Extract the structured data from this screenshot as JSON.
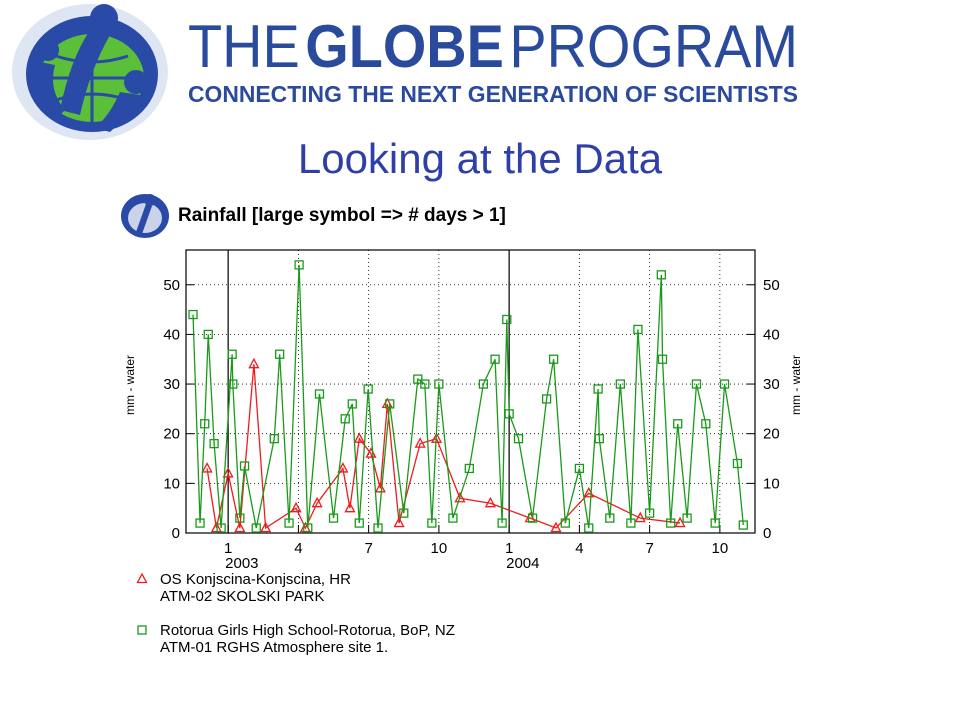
{
  "header": {
    "brand_prefix": "THE",
    "brand_bold": "GLOBE",
    "brand_suffix": "PROGRAM",
    "tagline": "CONNECTING THE NEXT GENERATION OF SCIENTISTS"
  },
  "slide_title": "Looking at the Data",
  "chart_data": {
    "type": "line",
    "title": "Rainfall [large symbol => # days > 1]",
    "ylabel": "mm - water",
    "y2label": "mm - water",
    "xlim": [
      -1.8,
      22.5
    ],
    "xticks": [
      {
        "value": 0,
        "label": "1"
      },
      {
        "value": 3,
        "label": "4"
      },
      {
        "value": 6,
        "label": "7"
      },
      {
        "value": 9,
        "label": "10"
      },
      {
        "value": 12,
        "label": "1"
      },
      {
        "value": 15,
        "label": "4"
      },
      {
        "value": 18,
        "label": "7"
      },
      {
        "value": 21,
        "label": "10"
      }
    ],
    "year_labels": [
      {
        "value": 0,
        "label": "2003"
      },
      {
        "value": 12,
        "label": "2004"
      }
    ],
    "ylim": [
      0,
      57
    ],
    "yticks": [
      0,
      10,
      20,
      30,
      40,
      50
    ],
    "y2lim": [
      0,
      57
    ],
    "y2ticks": [
      0,
      10,
      20,
      30,
      40,
      50
    ],
    "grid": true,
    "series": [
      {
        "name": "OS Konjscina-Konjscina, HR",
        "site": "ATM-02 SKOLSKI PARK",
        "color": "#ee1c1c",
        "marker": "triangle",
        "x": [
          -0.9,
          -0.5,
          0,
          0.5,
          1.1,
          1.6,
          2.9,
          3.3,
          3.8,
          4.9,
          5.2,
          5.6,
          6.1,
          6.5,
          6.8,
          7.3,
          8.2,
          8.9,
          9.9,
          11.2,
          12.9,
          14,
          15.4,
          17.6,
          19.3
        ],
        "values": [
          13,
          1,
          12,
          1,
          34,
          1,
          5,
          1,
          6,
          13,
          5,
          19,
          16,
          9,
          26,
          2,
          18,
          19,
          7,
          6,
          3,
          1,
          8,
          3,
          2
        ]
      },
      {
        "name": "Rotorua Girls High School-Rotorua, BoP, NZ",
        "site": "ATM-01 RGHS Atmosphere site 1.",
        "color": "#1a9a1a",
        "marker": "square",
        "x": [
          -1.5,
          -1.2,
          -1.0,
          -0.85,
          -0.6,
          -0.3,
          0.17,
          0.2,
          0.5,
          0.7,
          1.2,
          1.97,
          2.2,
          2.6,
          3.03,
          3.4,
          3.9,
          4.5,
          5.0,
          5.3,
          5.6,
          5.98,
          6.4,
          6.9,
          7.5,
          8.1,
          8.4,
          8.7,
          9.0,
          9.6,
          10.3,
          10.9,
          11.4,
          11.7,
          11.9,
          12.0,
          12.4,
          13.0,
          13.6,
          13.9,
          14.4,
          15.0,
          15.4,
          15.8,
          15.85,
          16.3,
          16.75,
          17.2,
          17.5,
          18.0,
          18.5,
          18.55,
          18.9,
          19.2,
          19.6,
          20.0,
          20.4,
          20.8,
          21.2,
          21.75,
          22.0
        ],
        "values": [
          44,
          2,
          22,
          40,
          18,
          1,
          36,
          30,
          3,
          13.5,
          1,
          19,
          36,
          2,
          54,
          1,
          28,
          3,
          23,
          26,
          2,
          29,
          1,
          26,
          4,
          31,
          30,
          2,
          30,
          3,
          13,
          30,
          35,
          2,
          43,
          24,
          19,
          3,
          27,
          35,
          2,
          13,
          1,
          29,
          19,
          3,
          30,
          2,
          41,
          4,
          52,
          35,
          2,
          22,
          3,
          30,
          22,
          2,
          30,
          14,
          1.6
        ]
      }
    ]
  }
}
